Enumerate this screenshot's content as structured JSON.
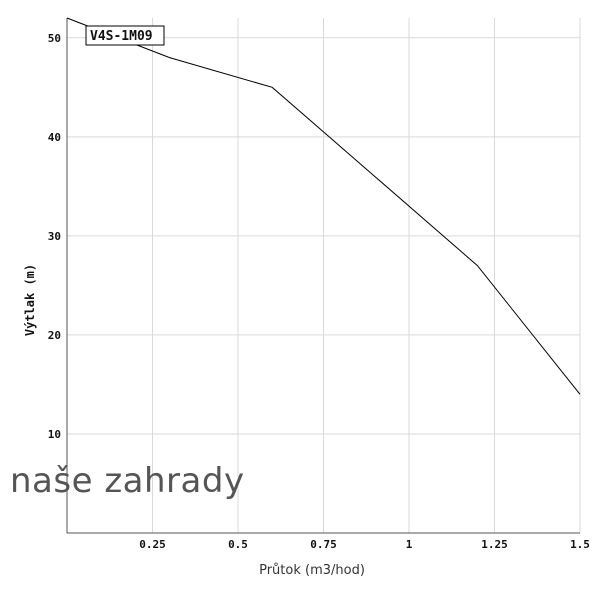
{
  "chart_data": {
    "type": "line",
    "title": "",
    "xlabel": "Průtok (m3/hod)",
    "ylabel": "Výtlak (m)",
    "xlim": [
      0,
      1.5
    ],
    "ylim": [
      0,
      52
    ],
    "xticks": [
      0.25,
      0.5,
      0.75,
      1,
      1.25,
      1.5
    ],
    "xtick_labels": [
      "0.25",
      "0.5",
      "0.75",
      "1",
      "1.25",
      "1.5"
    ],
    "yticks": [
      10,
      20,
      30,
      40,
      50
    ],
    "ytick_labels": [
      "10",
      "20",
      "30",
      "40",
      "50"
    ],
    "grid": true,
    "legend_position": "top-left",
    "series": [
      {
        "name": "V4S-1M09",
        "color": "#000000",
        "x": [
          0,
          0.3,
          0.6,
          0.9,
          1.2,
          1.5
        ],
        "y": [
          52,
          48,
          45,
          36,
          27,
          14
        ]
      }
    ]
  },
  "watermark": {
    "text": "naše zahrady"
  }
}
